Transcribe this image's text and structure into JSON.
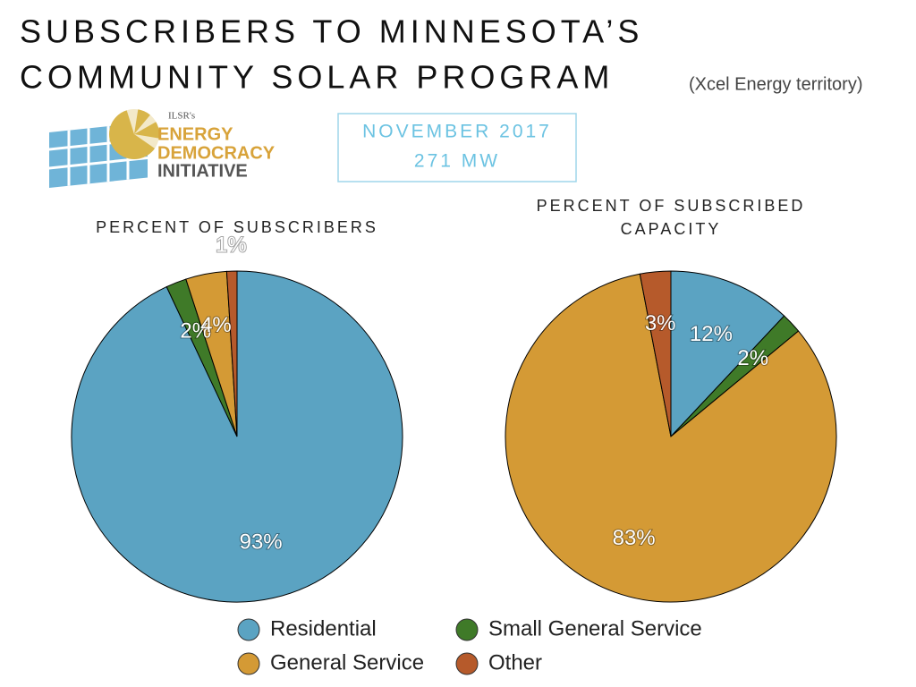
{
  "header": {
    "title": [
      "SUBSCRIBERS TO MINNESOTA’S",
      "COMMUNITY SOLAR PROGRAM"
    ],
    "subtitle": "(Xcel Energy territory)",
    "box": [
      "NOVEMBER 2017",
      "271 MW"
    ]
  },
  "logo": {
    "org": "ILSR's",
    "lines": [
      "ENERGY",
      "DEMOCRACY",
      "INITIATIVE"
    ]
  },
  "chart_data": {
    "type": "pie",
    "categories": [
      "Residential",
      "Small General Service",
      "General Service",
      "Other"
    ],
    "colors": [
      "#5ba3c2",
      "#3f7a28",
      "#d49a35",
      "#b65a2b"
    ],
    "pies": [
      {
        "title": [
          "PERCENT OF SUBSCRIBERS"
        ],
        "values": [
          93,
          2,
          4,
          1
        ],
        "value_labels": [
          "93%",
          "2%",
          "4%",
          "1%"
        ]
      },
      {
        "title": [
          "PERCENT OF SUBSCRIBED",
          "CAPACITY"
        ],
        "values": [
          12,
          2,
          83,
          3
        ],
        "value_labels": [
          "12%",
          "2%",
          "83%",
          "3%"
        ]
      }
    ]
  }
}
